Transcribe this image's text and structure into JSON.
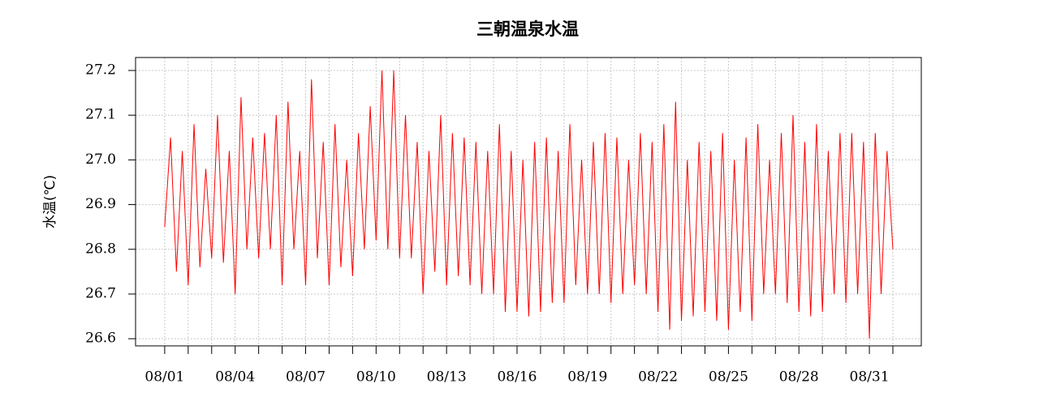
{
  "chart_data": {
    "type": "line",
    "title": "三朝温泉水温",
    "y_label": "水温(℃)",
    "color": "#ff0000",
    "grid": true,
    "xlim": [
      -0.24,
      33.21
    ],
    "ylim": [
      26.584,
      27.229
    ],
    "yticks": [
      26.6,
      26.7,
      26.8,
      26.9,
      {
        "value": 27,
        "label": "27.0"
      },
      27.1,
      27.2
    ],
    "xticks": [
      {
        "value": 1,
        "label": "08/01"
      },
      {
        "value": 4,
        "label": "08/04"
      },
      {
        "value": 7,
        "label": "08/07"
      },
      {
        "value": 10,
        "label": "08/10"
      },
      {
        "value": 13,
        "label": "08/13"
      },
      {
        "value": 16,
        "label": "08/16"
      },
      {
        "value": 19,
        "label": "08/19"
      },
      {
        "value": 22,
        "label": "08/22"
      },
      {
        "value": 25,
        "label": "08/25"
      },
      {
        "value": 28,
        "label": "08/28"
      },
      {
        "value": 31,
        "label": "08/31"
      }
    ],
    "xminorticks": [
      2,
      3,
      5,
      6,
      8,
      9,
      11,
      12,
      14,
      15,
      17,
      18,
      20,
      21,
      23,
      24,
      26,
      27,
      29,
      30,
      32
    ],
    "x": [
      1,
      1.25,
      1.5,
      1.75,
      2,
      2.25,
      2.5,
      2.75,
      3,
      3.25,
      3.5,
      3.75,
      4,
      4.25,
      4.5,
      4.75,
      5,
      5.25,
      5.5,
      5.75,
      6,
      6.25,
      6.5,
      6.75,
      7,
      7.25,
      7.5,
      7.75,
      8,
      8.25,
      8.5,
      8.75,
      9,
      9.25,
      9.5,
      9.75,
      10,
      10.25,
      10.5,
      10.75,
      11,
      11.25,
      11.5,
      11.75,
      12,
      12.25,
      12.5,
      12.75,
      13,
      13.25,
      13.5,
      13.75,
      14,
      14.25,
      14.5,
      14.75,
      15,
      15.25,
      15.5,
      15.75,
      16,
      16.25,
      16.5,
      16.75,
      17,
      17.25,
      17.5,
      17.75,
      18,
      18.25,
      18.5,
      18.75,
      19,
      19.25,
      19.5,
      19.75,
      20,
      20.25,
      20.5,
      20.75,
      21,
      21.25,
      21.5,
      21.75,
      22,
      22.25,
      22.5,
      22.75,
      23,
      23.25,
      23.5,
      23.75,
      24,
      24.25,
      24.5,
      24.75,
      25,
      25.25,
      25.5,
      25.75,
      26,
      26.25,
      26.5,
      26.75,
      27,
      27.25,
      27.5,
      27.75,
      28,
      28.25,
      28.5,
      28.75,
      29,
      29.25,
      29.5,
      29.75,
      30,
      30.25,
      30.5,
      30.75,
      31,
      31.25,
      31.5,
      31.75,
      32
    ],
    "values": [
      26.85,
      27.05,
      26.75,
      27.02,
      26.72,
      27.08,
      26.76,
      26.98,
      26.78,
      27.1,
      26.77,
      27.02,
      26.7,
      27.14,
      26.8,
      27.05,
      26.78,
      27.06,
      26.8,
      27.1,
      26.72,
      27.13,
      26.8,
      27.02,
      26.72,
      27.18,
      26.78,
      27.04,
      26.72,
      27.08,
      26.76,
      27.0,
      26.74,
      27.06,
      26.8,
      27.12,
      26.82,
      27.2,
      26.8,
      27.2,
      26.78,
      27.1,
      26.78,
      27.04,
      26.7,
      27.02,
      26.75,
      27.1,
      26.72,
      27.06,
      26.74,
      27.05,
      26.72,
      27.04,
      26.7,
      27.02,
      26.7,
      27.08,
      26.66,
      27.02,
      26.66,
      27.0,
      26.65,
      27.04,
      26.66,
      27.05,
      26.68,
      27.02,
      26.68,
      27.08,
      26.72,
      27.0,
      26.7,
      27.04,
      26.7,
      27.06,
      26.68,
      27.05,
      26.7,
      27.0,
      26.72,
      27.06,
      26.7,
      27.04,
      26.66,
      27.08,
      26.62,
      27.13,
      26.64,
      27.0,
      26.65,
      27.04,
      26.66,
      27.02,
      26.64,
      27.06,
      26.62,
      27.0,
      26.66,
      27.05,
      26.64,
      27.08,
      26.7,
      27.0,
      26.7,
      27.06,
      26.68,
      27.1,
      26.66,
      27.04,
      26.65,
      27.08,
      26.66,
      27.02,
      26.7,
      27.06,
      26.68,
      27.06,
      26.7,
      27.04,
      26.6,
      27.06,
      26.7,
      27.02,
      26.8
    ]
  }
}
